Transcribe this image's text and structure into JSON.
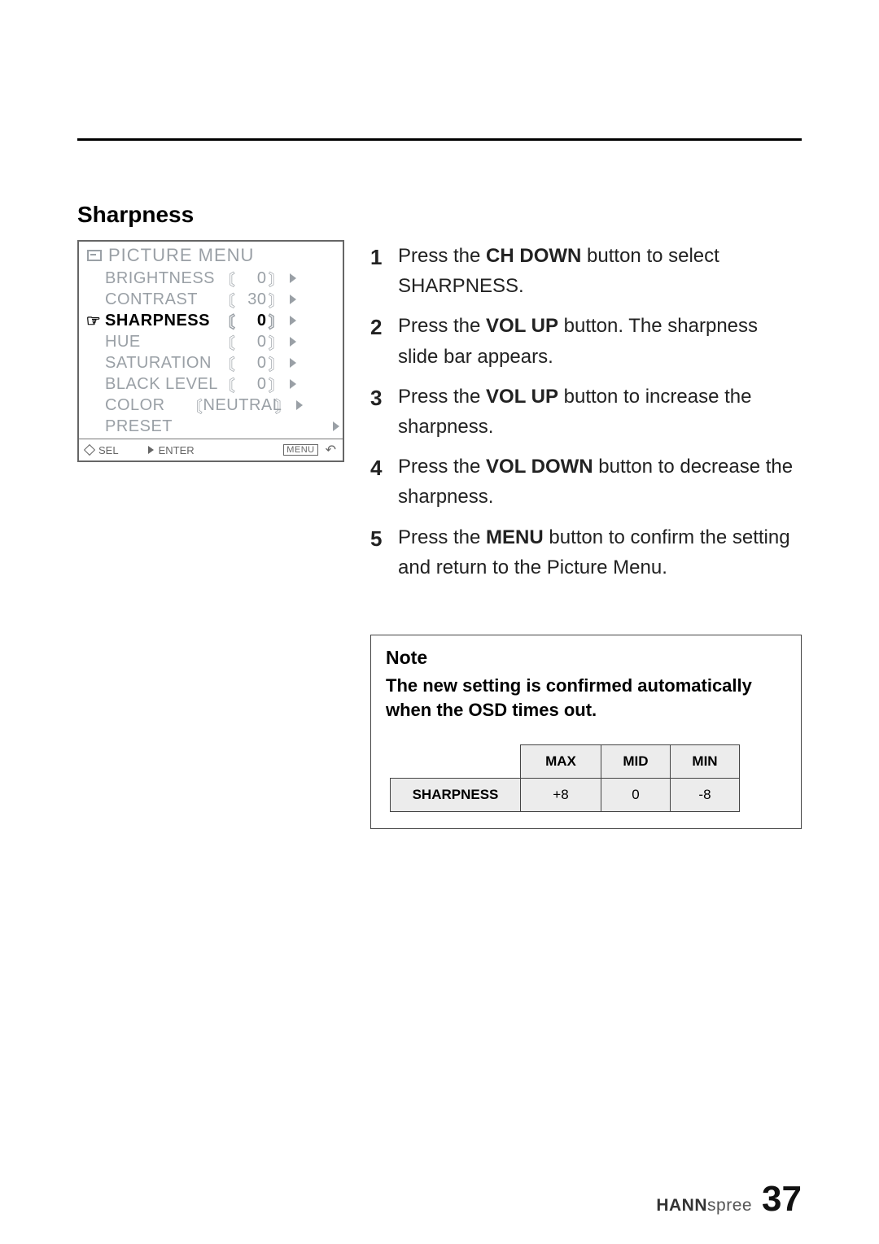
{
  "page": {
    "heading": "Sharpness",
    "page_number": "37",
    "brand_bold": "HANN",
    "brand_light": "spree"
  },
  "osd": {
    "title": "PICTURE   MENU",
    "rows": [
      {
        "label": "BRIGHTNESS",
        "value": "0",
        "active": false
      },
      {
        "label": "CONTRAST",
        "value": "30",
        "active": false
      },
      {
        "label": "SHARPNESS",
        "value": "0",
        "active": true
      },
      {
        "label": "HUE",
        "value": "0",
        "active": false
      },
      {
        "label": "SATURATION",
        "value": "0",
        "active": false
      },
      {
        "label": "BLACK LEVEL",
        "value": "0",
        "active": false
      }
    ],
    "color_row": {
      "label": "COLOR",
      "value": "NEUTRAL"
    },
    "preset_row": {
      "label": "PRESET"
    },
    "footer": {
      "sel": "SEL",
      "enter": "ENTER",
      "menu": "MENU"
    }
  },
  "instructions": [
    {
      "n": "1",
      "pre": "Press the ",
      "bold": "CH DOWN",
      "post": " button to select SHARPNESS."
    },
    {
      "n": "2",
      "pre": "Press the ",
      "bold": "VOL UP",
      "post": " button. The sharpness slide bar appears."
    },
    {
      "n": "3",
      "pre": "Press the ",
      "bold": "VOL UP",
      "post": " button to increase the sharpness."
    },
    {
      "n": "4",
      "pre": "Press the ",
      "bold": "VOL DOWN",
      "post": " button to decrease the sharpness."
    },
    {
      "n": "5",
      "pre": "Press the ",
      "bold": "MENU",
      "post": " button to confirm the setting and return to the Picture Menu."
    }
  ],
  "note": {
    "title": "Note",
    "body": "The new setting is confirmed automatically when the OSD times out.",
    "table": {
      "headers": [
        "MAX",
        "MID",
        "MIN"
      ],
      "rowhead": "SHARPNESS",
      "values": [
        "+8",
        "0",
        "-8"
      ]
    }
  }
}
